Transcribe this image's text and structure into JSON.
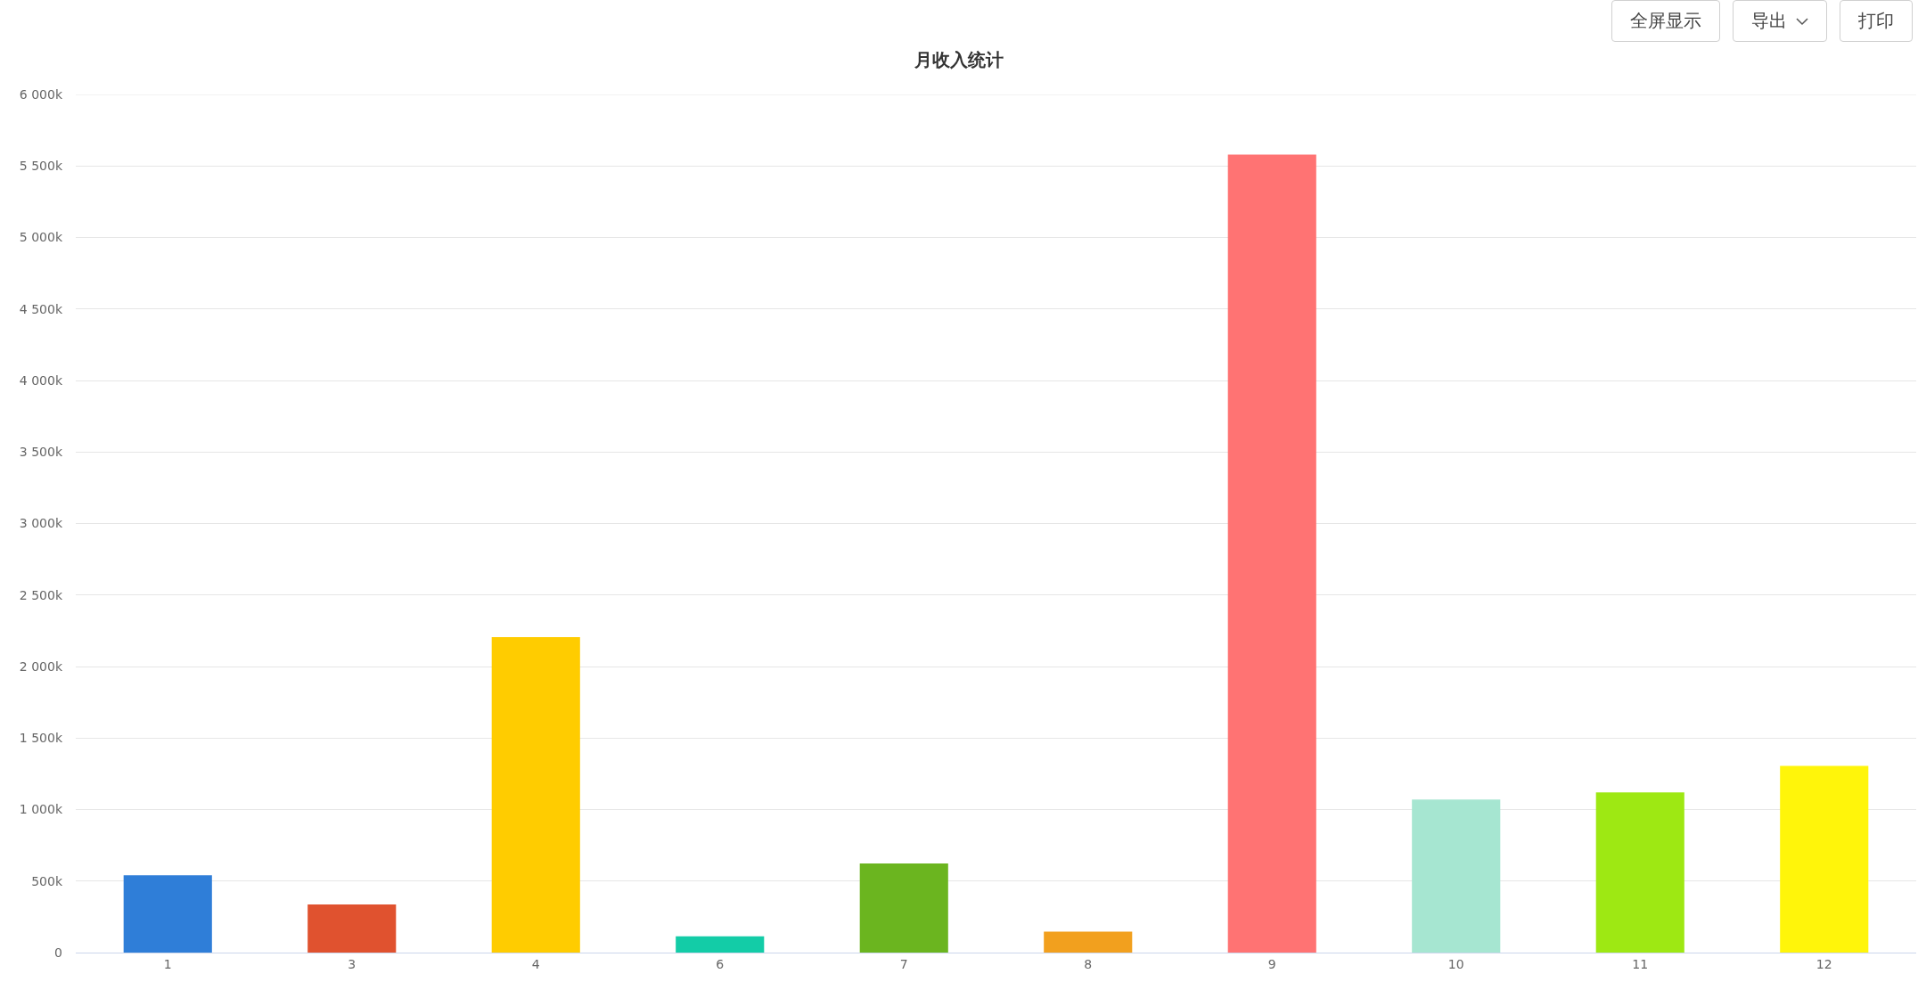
{
  "chart_data": {
    "type": "bar",
    "title": "月收入统计",
    "categories": [
      "1",
      "3",
      "4",
      "6",
      "7",
      "8",
      "9",
      "10",
      "11",
      "12"
    ],
    "values": [
      540,
      336,
      2206,
      114,
      623,
      147,
      5580,
      1070,
      1120,
      1305
    ],
    "colors": [
      "#2f7ed8",
      "#e0522f",
      "#ffcc00",
      "#13cca7",
      "#6bb51f",
      "#f2a01e",
      "#ff7373",
      "#a6e6d1",
      "#9ee813",
      "#fff50a"
    ],
    "ylim": [
      0,
      6000
    ],
    "yticks": [
      0,
      {
        "value": 500,
        "label": "500k"
      },
      {
        "value": 1000,
        "label": "1 000k"
      },
      {
        "value": 1500,
        "label": "1 500k"
      },
      {
        "value": 2000,
        "label": "2 000k"
      },
      {
        "value": 2500,
        "label": "2 500k"
      },
      {
        "value": 3000,
        "label": "3 000k"
      },
      {
        "value": 3500,
        "label": "3 500k"
      },
      {
        "value": 4000,
        "label": "4 000k"
      },
      {
        "value": 4500,
        "label": "4 500k"
      },
      {
        "value": 5000,
        "label": "5 000k"
      },
      {
        "value": 5500,
        "label": "5 500k"
      },
      {
        "value": 6000,
        "label": "6 000k"
      }
    ],
    "grid": "y",
    "annotations": [
      "全屏显示",
      "导出",
      "打印"
    ]
  }
}
